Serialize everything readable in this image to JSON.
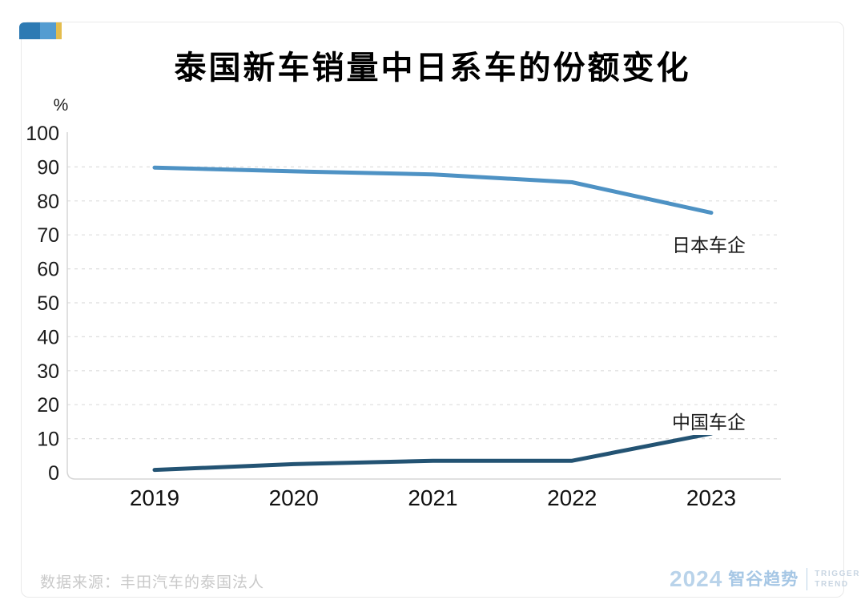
{
  "header": {
    "title": "泰国新车销量中日系车的份额变化"
  },
  "footer": {
    "source": "数据来源：丰田汽车的泰国法人"
  },
  "brand": {
    "badge_colors": [
      "#2d7ab3",
      "#549cd1",
      "#e4bd4e"
    ],
    "footer_logo": {
      "year": "2024",
      "name": "智谷趋势",
      "tagline_line1": "TRIGGER",
      "tagline_line2": "TREND",
      "year_color": "#b9d3ea",
      "name_color": "#a6c7e5",
      "tagline_color": "#c8d5e2",
      "divider_color": "#bcd3e8"
    }
  },
  "chart_data": {
    "type": "line",
    "title": "泰国新车销量中日系车的份额变化",
    "unit_label": "%",
    "categories": [
      "2019",
      "2020",
      "2021",
      "2022",
      "2023"
    ],
    "series": [
      {
        "name": "日本车企",
        "color": "#4e92c4",
        "values": [
          89.8,
          88.7,
          87.8,
          85.5,
          76.5
        ]
      },
      {
        "name": "中国车企",
        "color": "#235373",
        "values": [
          0.8,
          2.5,
          3.5,
          3.5,
          11.5
        ]
      }
    ],
    "ylim": [
      0,
      100
    ],
    "yticks": [
      0,
      10,
      20,
      30,
      40,
      50,
      60,
      70,
      80,
      90,
      100
    ],
    "xlabel": "",
    "ylabel": "%",
    "grid": "horizontal-dashed",
    "legend_position": "inline-labels-near-line-ends",
    "grid_color": "#dedede",
    "axis_color": "#d5d5d5",
    "tick_label_color": "#1b1b1b"
  }
}
